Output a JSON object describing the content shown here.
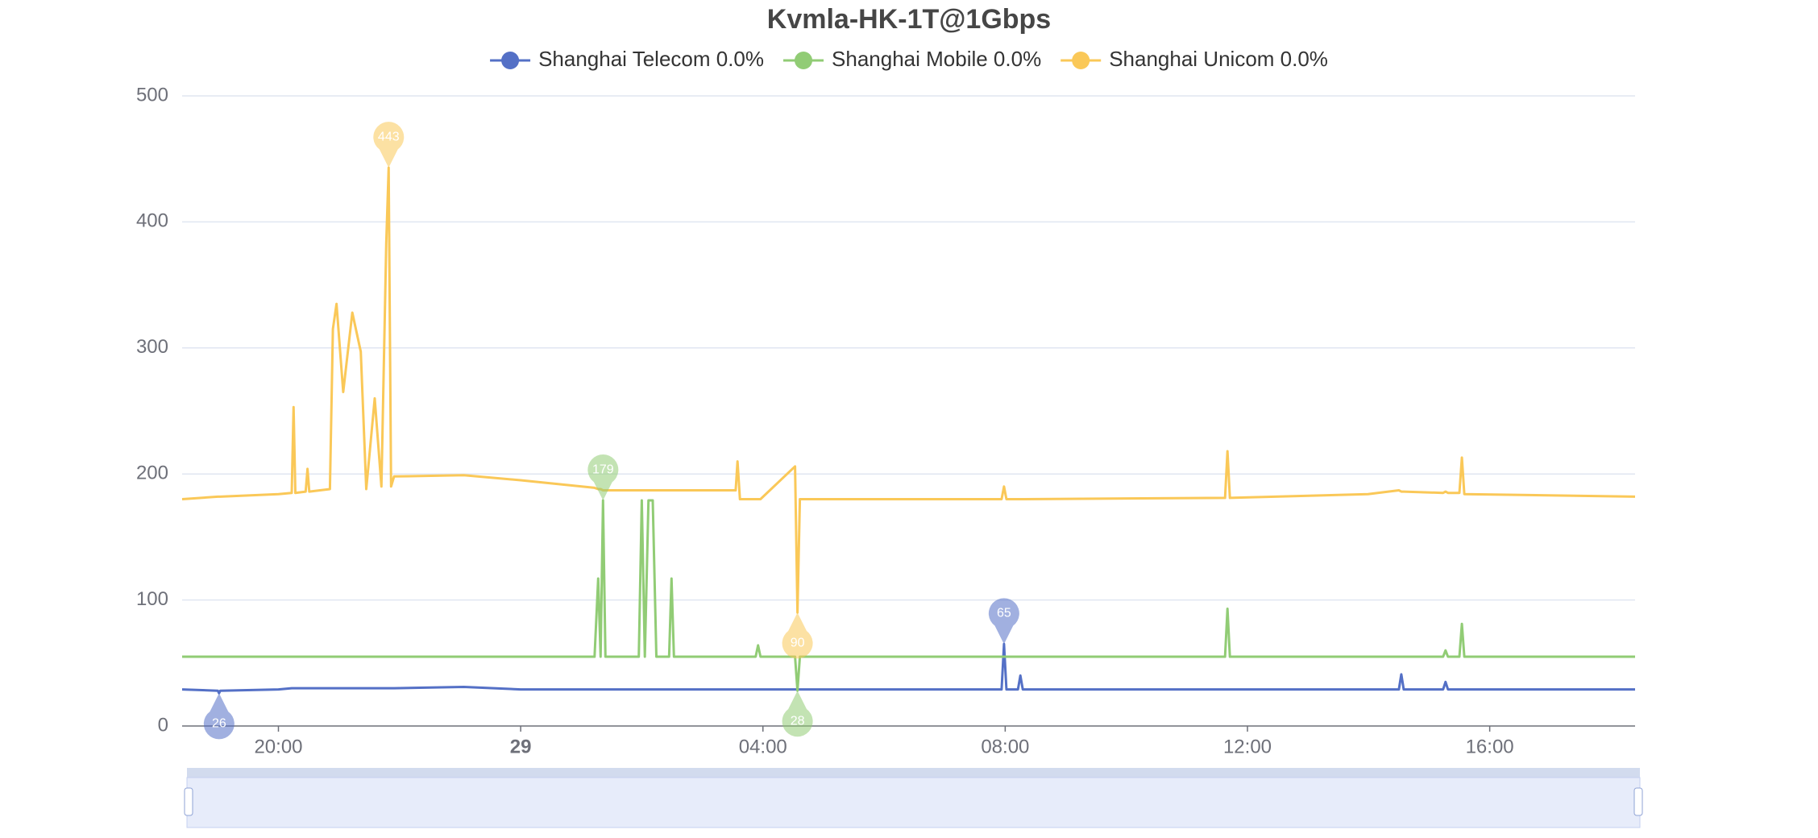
{
  "chart_data": {
    "type": "line",
    "title": "Kvmla-HK-1T@1Gbps",
    "x": [
      18.41,
      19.0,
      19.02,
      19.04,
      20.0,
      20.22,
      20.25,
      20.28,
      20.45,
      20.48,
      20.51,
      20.85,
      20.9,
      20.96,
      21.07,
      21.22,
      21.36,
      21.45,
      21.59,
      21.7,
      21.78,
      21.82,
      21.86,
      21.91,
      23.06,
      24.0,
      25.22,
      25.28,
      25.32,
      25.36,
      25.4,
      25.95,
      26.0,
      26.05,
      26.11,
      26.18,
      26.24,
      26.45,
      26.49,
      26.53,
      27.55,
      27.58,
      27.62,
      27.88,
      27.92,
      27.96,
      28.53,
      28.57,
      28.61,
      31.94,
      31.98,
      32.02,
      32.21,
      32.25,
      32.29,
      35.63,
      35.67,
      35.71,
      37.99,
      38.5,
      38.54,
      38.58,
      39.23,
      39.27,
      39.31,
      39.5,
      39.54,
      39.58,
      42.4
    ],
    "series": [
      {
        "name": "Shanghai Telecom 0.0%",
        "color": "#5470c6",
        "values": [
          29,
          28,
          26,
          28,
          29,
          30,
          30,
          30,
          30,
          30,
          30,
          30,
          30,
          30,
          30,
          30,
          30,
          30,
          30,
          30,
          30,
          30,
          30,
          30,
          31,
          29,
          29,
          29,
          29,
          29,
          29,
          29,
          29,
          29,
          29,
          29,
          29,
          29,
          29,
          29,
          29,
          29,
          29,
          29,
          29,
          29,
          29,
          29,
          29,
          29,
          65,
          29,
          29,
          40,
          29,
          29,
          29,
          29,
          29,
          29,
          41,
          29,
          29,
          35,
          29,
          29,
          29,
          29,
          29
        ]
      },
      {
        "name": "Shanghai Mobile 0.0%",
        "color": "#91cc75",
        "values": [
          55,
          55,
          55,
          55,
          55,
          55,
          55,
          55,
          55,
          55,
          55,
          55,
          55,
          55,
          55,
          55,
          55,
          55,
          55,
          55,
          55,
          55,
          55,
          55,
          55,
          55,
          55,
          117,
          55,
          179,
          55,
          55,
          179,
          55,
          179,
          179,
          55,
          55,
          117,
          55,
          55,
          55,
          55,
          55,
          64,
          55,
          55,
          28,
          55,
          55,
          55,
          55,
          55,
          55,
          55,
          55,
          93,
          55,
          55,
          55,
          55,
          55,
          55,
          60,
          55,
          55,
          81,
          55,
          55
        ]
      },
      {
        "name": "Shanghai Unicom 0.0%",
        "color": "#fac858",
        "values": [
          180,
          182,
          182,
          182,
          184,
          185,
          253,
          185,
          186,
          204,
          186,
          188,
          315,
          335,
          265,
          328,
          297,
          188,
          260,
          190,
          383,
          443,
          190,
          198,
          199,
          195,
          189,
          188,
          188,
          187,
          187,
          187,
          187,
          187,
          187,
          187,
          187,
          187,
          187,
          187,
          187,
          210,
          180,
          180,
          180,
          180,
          206,
          90,
          180,
          180,
          190,
          180,
          180,
          180,
          180,
          181,
          218,
          181,
          184,
          187,
          186,
          186,
          185,
          186,
          185,
          185,
          213,
          184,
          182
        ]
      }
    ],
    "xlim": [
      18.41,
      42.4
    ],
    "xticks": [
      {
        "value": 20,
        "label": "20:00"
      },
      {
        "value": 24,
        "label": "29"
      },
      {
        "value": 28,
        "label": "04:00"
      },
      {
        "value": 32,
        "label": "08:00"
      },
      {
        "value": 36,
        "label": "12:00"
      },
      {
        "value": 40,
        "label": "16:00"
      }
    ],
    "ylim": [
      0,
      500
    ],
    "yticks": [
      0,
      100,
      200,
      300,
      400,
      500
    ],
    "grid": true
  }
}
